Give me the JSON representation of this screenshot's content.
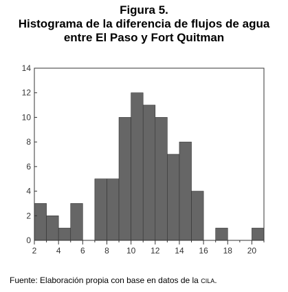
{
  "figure": {
    "label": "Figura 5.",
    "title_line1": "Histograma de la diferencia de flujos de agua",
    "title_line2": "entre El Paso y Fort Quitman"
  },
  "source": {
    "prefix": "Fuente: Elaboración propia con base en datos de la ",
    "org": "CILA",
    "suffix": "."
  },
  "chart_data": {
    "type": "bar",
    "title": "",
    "xlabel": "",
    "ylabel": "",
    "xlim": [
      2,
      21
    ],
    "ylim": [
      0,
      14
    ],
    "x_ticks": [
      2,
      4,
      6,
      8,
      10,
      12,
      14,
      16,
      18,
      20
    ],
    "y_ticks": [
      0,
      2,
      4,
      6,
      8,
      10,
      12,
      14
    ],
    "bin_width": 1,
    "bins": [
      {
        "start": 2,
        "value": 3
      },
      {
        "start": 3,
        "value": 2
      },
      {
        "start": 4,
        "value": 1
      },
      {
        "start": 5,
        "value": 3
      },
      {
        "start": 6,
        "value": 0
      },
      {
        "start": 7,
        "value": 5
      },
      {
        "start": 8,
        "value": 5
      },
      {
        "start": 9,
        "value": 10
      },
      {
        "start": 10,
        "value": 12
      },
      {
        "start": 11,
        "value": 11
      },
      {
        "start": 12,
        "value": 10
      },
      {
        "start": 13,
        "value": 7
      },
      {
        "start": 14,
        "value": 8
      },
      {
        "start": 15,
        "value": 4
      },
      {
        "start": 16,
        "value": 0
      },
      {
        "start": 17,
        "value": 1
      },
      {
        "start": 18,
        "value": 0
      },
      {
        "start": 19,
        "value": 0
      },
      {
        "start": 20,
        "value": 1
      }
    ],
    "bar_color": "#666666",
    "bar_edge_color": "#333333",
    "grid": false
  }
}
